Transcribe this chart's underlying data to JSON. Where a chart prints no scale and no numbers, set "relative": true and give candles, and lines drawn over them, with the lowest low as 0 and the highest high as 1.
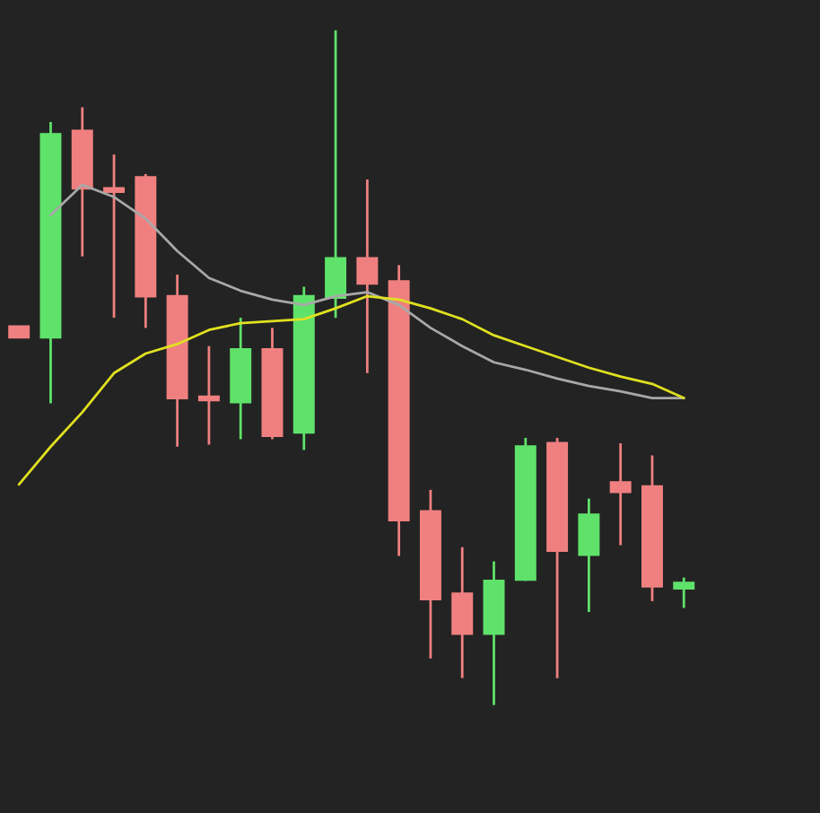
{
  "chart_data": {
    "type": "candlestick",
    "relative": true,
    "categories": [
      null,
      null,
      null,
      null,
      null,
      null,
      null,
      null,
      null,
      null,
      null,
      null,
      null,
      null,
      null,
      null,
      null,
      null,
      null,
      null,
      null,
      null
    ],
    "ohlc": [
      [
        0.561,
        0.561,
        0.545,
        0.545
      ],
      [
        0.545,
        0.864,
        0.447,
        0.846
      ],
      [
        0.851,
        0.886,
        0.665,
        0.766
      ],
      [
        0.766,
        0.816,
        0.574,
        0.761
      ],
      [
        0.782,
        0.787,
        0.559,
        0.606
      ],
      [
        0.606,
        0.638,
        0.383,
        0.455
      ],
      [
        0.457,
        0.532,
        0.386,
        0.452
      ],
      [
        0.449,
        0.574,
        0.394,
        0.527
      ],
      [
        0.527,
        0.559,
        0.394,
        0.399
      ],
      [
        0.404,
        0.62,
        0.378,
        0.606
      ],
      [
        0.604,
        1.0,
        0.574,
        0.662
      ],
      [
        0.662,
        0.779,
        0.492,
        0.625
      ],
      [
        0.628,
        0.652,
        0.221,
        0.274
      ],
      [
        0.287,
        0.319,
        0.069,
        0.157
      ],
      [
        0.165,
        0.234,
        0.04,
        0.106
      ],
      [
        0.106,
        0.213,
        0.0,
        0.184
      ],
      [
        0.186,
        0.396,
        0.184,
        0.383
      ],
      [
        0.388,
        0.396,
        0.04,
        0.229
      ],
      [
        0.223,
        0.306,
        0.138,
        0.282
      ],
      [
        0.33,
        0.388,
        0.237,
        0.316
      ],
      [
        0.324,
        0.37,
        0.154,
        0.176
      ],
      [
        0.173,
        0.189,
        0.144,
        0.181
      ]
    ],
    "colors": [
      "#f08080",
      "#5fe26a",
      "#f08080",
      "#f08080",
      "#f08080",
      "#f08080",
      "#f08080",
      "#5fe26a",
      "#f08080",
      "#5fe26a",
      "#5fe26a",
      "#f08080",
      "#f08080",
      "#f08080",
      "#f08080",
      "#5fe26a",
      "#5fe26a",
      "#f08080",
      "#5fe26a",
      "#f08080",
      "#f08080",
      "#5fe26a"
    ],
    "series": [
      {
        "type": "line",
        "color": "#a8a8a8",
        "values": [
          null,
          0.726,
          0.771,
          0.753,
          0.721,
          0.673,
          0.633,
          0.614,
          0.601,
          0.593,
          0.606,
          0.612,
          0.593,
          0.559,
          0.532,
          0.508,
          0.497,
          0.484,
          0.473,
          0.465,
          0.455,
          0.455
        ]
      },
      {
        "type": "line",
        "color": "#e0e020",
        "values": [
          0.327,
          0.383,
          0.434,
          0.492,
          0.521,
          0.535,
          0.556,
          0.566,
          0.569,
          0.572,
          0.588,
          0.606,
          0.601,
          0.588,
          0.572,
          0.548,
          0.532,
          0.516,
          0.5,
          0.487,
          0.476,
          0.455
        ]
      }
    ]
  }
}
